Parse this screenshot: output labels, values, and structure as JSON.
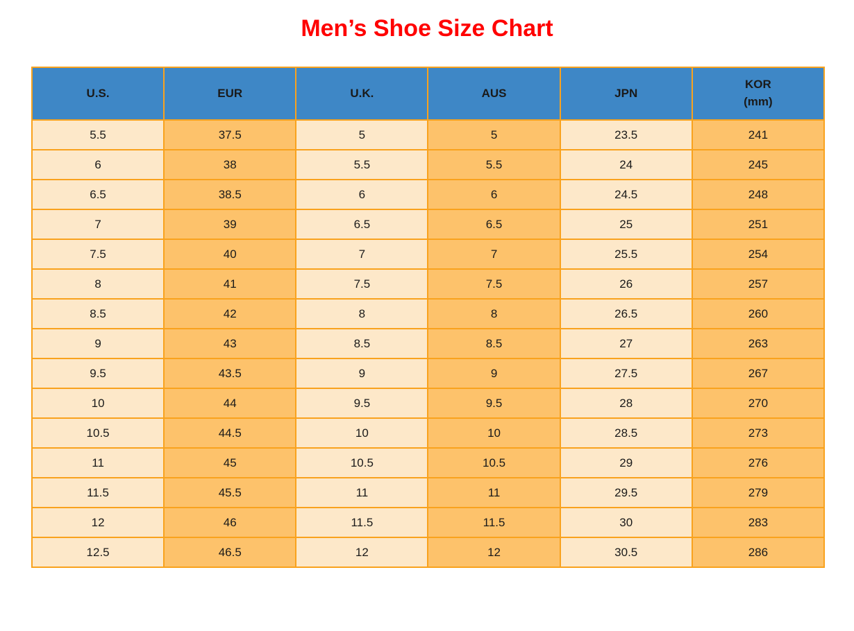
{
  "title": "Men’s Shoe Size Chart",
  "colors": {
    "title_red": "#FF0000",
    "header_blue": "#3E87C6",
    "cell_cream": "#FDE8C9",
    "cell_orange": "#FDC26B",
    "border_orange": "#F9A21D",
    "text_dark": "#1A1A1A"
  },
  "table": {
    "headers": [
      {
        "line1": "U.S.",
        "line2": ""
      },
      {
        "line1": "EUR",
        "line2": ""
      },
      {
        "line1": "U.K.",
        "line2": ""
      },
      {
        "line1": "AUS",
        "line2": ""
      },
      {
        "line1": "JPN",
        "line2": ""
      },
      {
        "line1": "KOR",
        "line2": "(mm)"
      }
    ]
  },
  "chart_data": {
    "type": "table",
    "title": "Men’s Shoe Size Chart",
    "columns": [
      "U.S.",
      "EUR",
      "U.K.",
      "AUS",
      "JPN",
      "KOR (mm)"
    ],
    "rows": [
      [
        "5.5",
        "37.5",
        "5",
        "5",
        "23.5",
        "241"
      ],
      [
        "6",
        "38",
        "5.5",
        "5.5",
        "24",
        "245"
      ],
      [
        "6.5",
        "38.5",
        "6",
        "6",
        "24.5",
        "248"
      ],
      [
        "7",
        "39",
        "6.5",
        "6.5",
        "25",
        "251"
      ],
      [
        "7.5",
        "40",
        "7",
        "7",
        "25.5",
        "254"
      ],
      [
        "8",
        "41",
        "7.5",
        "7.5",
        "26",
        "257"
      ],
      [
        "8.5",
        "42",
        "8",
        "8",
        "26.5",
        "260"
      ],
      [
        "9",
        "43",
        "8.5",
        "8.5",
        "27",
        "263"
      ],
      [
        "9.5",
        "43.5",
        "9",
        "9",
        "27.5",
        "267"
      ],
      [
        "10",
        "44",
        "9.5",
        "9.5",
        "28",
        "270"
      ],
      [
        "10.5",
        "44.5",
        "10",
        "10",
        "28.5",
        "273"
      ],
      [
        "11",
        "45",
        "10.5",
        "10.5",
        "29",
        "276"
      ],
      [
        "11.5",
        "45.5",
        "11",
        "11",
        "29.5",
        "279"
      ],
      [
        "12",
        "46",
        "11.5",
        "11.5",
        "30",
        "283"
      ],
      [
        "12.5",
        "46.5",
        "12",
        "12",
        "30.5",
        "286"
      ]
    ]
  }
}
